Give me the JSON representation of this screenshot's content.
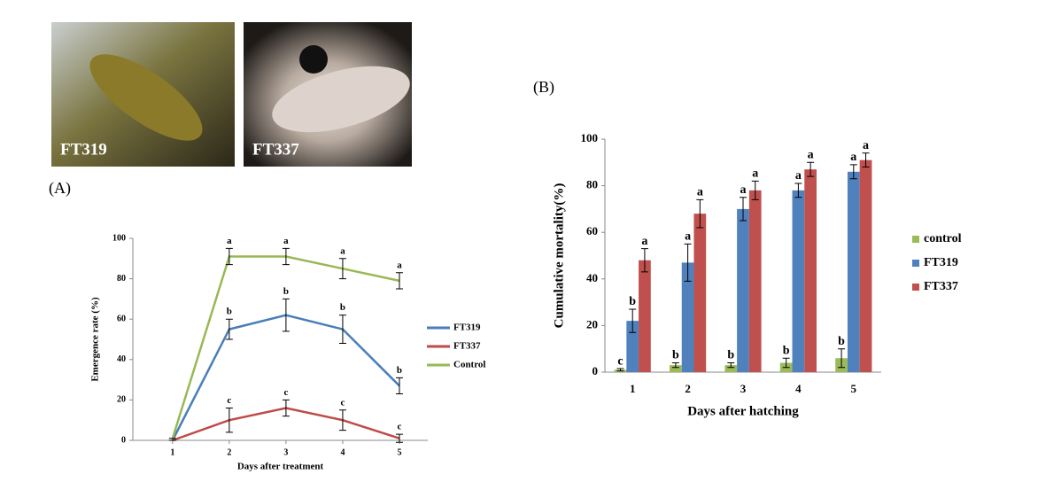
{
  "photos": [
    {
      "label": "FT319"
    },
    {
      "label": "FT337"
    }
  ],
  "panel_labels": [
    "(A)",
    "(B)"
  ],
  "chart_data": [
    {
      "type": "line",
      "x_label": "Days after treatment",
      "y_label": "Emergence rate (%)",
      "x": [
        1,
        2,
        3,
        4,
        5
      ],
      "xlim": [
        0.3,
        5.5
      ],
      "xticks": [
        1,
        2,
        3,
        4,
        5
      ],
      "ylim": [
        0,
        100
      ],
      "yticks": [
        0,
        20,
        40,
        60,
        80,
        100
      ],
      "series": [
        {
          "name": "FT319",
          "color": "#4a7ebb",
          "values": [
            0,
            55,
            62,
            55,
            27
          ],
          "errors": [
            0,
            5,
            8,
            7,
            4
          ],
          "annotations": [
            null,
            "b",
            "b",
            "b",
            "b"
          ]
        },
        {
          "name": "FT337",
          "color": "#be4b48",
          "values": [
            0,
            10,
            16,
            10,
            1
          ],
          "errors": [
            0,
            6,
            4,
            5,
            2
          ],
          "annotations": [
            null,
            "c",
            "c",
            "c",
            "c"
          ]
        },
        {
          "name": "Control",
          "color": "#98b954",
          "values": [
            1,
            91,
            91,
            85,
            79
          ],
          "errors": [
            0,
            4,
            4,
            5,
            4
          ],
          "annotations": [
            null,
            "a",
            "a",
            "a",
            "a"
          ]
        }
      ]
    },
    {
      "type": "bar",
      "x_label": "Days after hatching",
      "y_label": "Cumulative mortality(%)",
      "categories": [
        "1",
        "2",
        "3",
        "4",
        "5"
      ],
      "ylim": [
        0,
        100
      ],
      "yticks": [
        0,
        20,
        40,
        60,
        80,
        100
      ],
      "series": [
        {
          "name": "control",
          "color": "#9bbb59",
          "values": [
            1,
            3,
            3,
            4,
            6
          ],
          "errors": [
            0.5,
            1,
            1,
            2,
            4
          ],
          "annotations": [
            "c",
            "b",
            "b",
            "b",
            "b"
          ]
        },
        {
          "name": "FT319",
          "color": "#4f81bd",
          "values": [
            22,
            47,
            70,
            78,
            86
          ],
          "errors": [
            5,
            8,
            5,
            3,
            3
          ],
          "annotations": [
            "b",
            "a",
            "a",
            "a",
            "a"
          ]
        },
        {
          "name": "FT337",
          "color": "#c0504d",
          "values": [
            48,
            68,
            78,
            87,
            91
          ],
          "errors": [
            5,
            6,
            4,
            3,
            3
          ],
          "annotations": [
            "a",
            "a",
            "a",
            "a",
            "a"
          ]
        }
      ]
    }
  ]
}
